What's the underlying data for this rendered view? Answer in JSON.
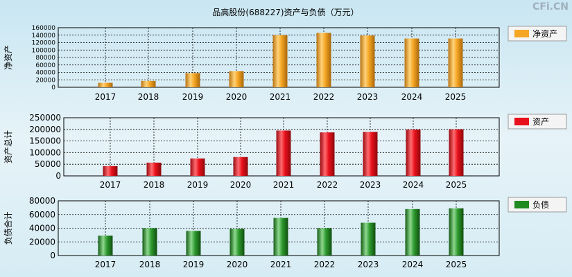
{
  "title": "品高股份(688227)资产与负债（万元）",
  "watermark": "CFi.CN",
  "colors": {
    "orange": "#f5a623",
    "red": "#e8101a",
    "green": "#1f8a1f"
  },
  "chart_data": [
    {
      "type": "bar",
      "ylabel": "净资产",
      "legend": "净资产",
      "color": "orange",
      "ylim": [
        0,
        160000
      ],
      "yticks": [
        0,
        20000,
        40000,
        60000,
        80000,
        100000,
        120000,
        140000,
        160000
      ],
      "categories": [
        "2017",
        "2018",
        "2019",
        "2020",
        "2021",
        "2022",
        "2023",
        "2024",
        "2025"
      ],
      "values": [
        12000,
        17000,
        38000,
        43000,
        140000,
        146000,
        139000,
        131000,
        131000
      ]
    },
    {
      "type": "bar",
      "ylabel": "资产总计",
      "legend": "资产",
      "color": "red",
      "ylim": [
        0,
        250000
      ],
      "yticks": [
        0,
        50000,
        100000,
        150000,
        200000,
        250000
      ],
      "categories": [
        "2017",
        "2018",
        "2019",
        "2020",
        "2021",
        "2022",
        "2023",
        "2024",
        "2025"
      ],
      "values": [
        42000,
        57000,
        75000,
        81000,
        195000,
        187000,
        189000,
        199000,
        200000
      ]
    },
    {
      "type": "bar",
      "ylabel": "负债合计",
      "legend": "负债",
      "color": "green",
      "ylim": [
        0,
        80000
      ],
      "yticks": [
        0,
        20000,
        40000,
        60000,
        80000
      ],
      "categories": [
        "2017",
        "2018",
        "2019",
        "2020",
        "2021",
        "2022",
        "2023",
        "2024",
        "2025"
      ],
      "values": [
        29000,
        40000,
        36000,
        39000,
        55000,
        40000,
        48000,
        68000,
        69000
      ]
    }
  ]
}
